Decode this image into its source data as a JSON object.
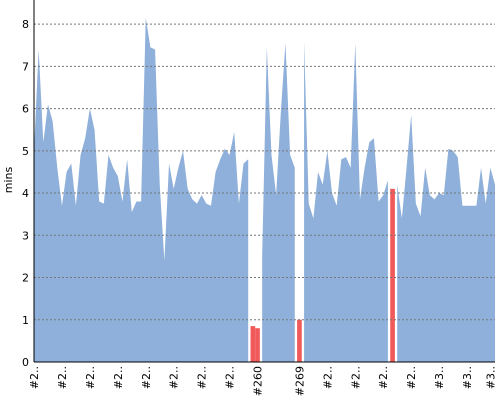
{
  "chart_data": {
    "type": "area",
    "y_label": "mins",
    "ylim": [
      0,
      8.5
    ],
    "yticks": [
      0,
      1,
      2,
      3,
      4,
      5,
      6,
      7,
      8
    ],
    "grid": true,
    "categories": [
      "#2..",
      null,
      null,
      null,
      null,
      null,
      "#2..",
      null,
      null,
      null,
      null,
      null,
      "#2..",
      null,
      null,
      null,
      null,
      null,
      "#2..",
      null,
      null,
      null,
      null,
      null,
      "#2..",
      null,
      null,
      null,
      null,
      null,
      "#2..",
      null,
      null,
      null,
      null,
      null,
      "#2..",
      null,
      null,
      null,
      null,
      null,
      "#2..",
      null,
      null,
      null,
      null,
      null,
      "#260",
      null,
      null,
      null,
      null,
      null,
      null,
      null,
      null,
      "#269",
      null,
      null,
      null,
      null,
      null,
      "#2..",
      null,
      null,
      null,
      null,
      null,
      "#2..",
      null,
      null,
      null,
      null,
      null,
      "#2..",
      null,
      null,
      null,
      null,
      null,
      "#2..",
      null,
      null,
      null,
      null,
      null,
      "#3..",
      null,
      null,
      null,
      null,
      null,
      "#3..",
      null,
      null,
      null,
      null,
      "#3..",
      null
    ],
    "series": [
      {
        "color": "#8eb0da",
        "values": [
          5.0,
          7.4,
          5.2,
          6.1,
          5.7,
          4.6,
          3.7,
          4.5,
          4.7,
          3.7,
          4.9,
          5.3,
          6.0,
          5.5,
          3.8,
          3.75,
          4.9,
          4.6,
          4.4,
          3.8,
          4.8,
          3.55,
          3.8,
          3.8,
          8.15,
          7.45,
          7.4,
          4.2,
          2.4,
          4.7,
          4.1,
          4.6,
          5.0,
          4.1,
          3.85,
          3.75,
          3.95,
          3.75,
          3.7,
          4.5,
          4.8,
          5.05,
          4.9,
          5.45,
          3.75,
          4.7,
          4.8,
          null,
          null,
          2.5,
          7.45,
          4.9,
          3.95,
          5.9,
          7.55,
          4.9,
          4.6,
          null,
          7.6,
          3.75,
          3.4,
          4.5,
          4.2,
          5.0,
          4.0,
          3.7,
          4.8,
          4.85,
          4.6,
          7.55,
          3.85,
          4.6,
          5.2,
          5.3,
          3.8,
          3.95,
          4.3,
          null,
          4.2,
          3.4,
          4.6,
          5.85,
          3.75,
          3.45,
          4.6,
          3.95,
          3.85,
          4.0,
          3.95,
          5.05,
          5.0,
          4.85,
          3.7,
          3.7,
          3.7,
          3.7,
          4.6,
          3.75,
          4.6,
          4.2
        ]
      },
      {
        "color": "#f05a5a",
        "values": [
          null,
          null,
          null,
          null,
          null,
          null,
          null,
          null,
          null,
          null,
          null,
          null,
          null,
          null,
          null,
          null,
          null,
          null,
          null,
          null,
          null,
          null,
          null,
          null,
          null,
          null,
          null,
          null,
          null,
          null,
          null,
          null,
          null,
          null,
          null,
          null,
          null,
          null,
          null,
          null,
          null,
          null,
          null,
          null,
          null,
          null,
          null,
          0.85,
          0.8,
          null,
          null,
          null,
          null,
          null,
          null,
          null,
          null,
          1.0,
          null,
          null,
          null,
          null,
          null,
          null,
          null,
          null,
          null,
          null,
          null,
          null,
          null,
          null,
          null,
          null,
          null,
          null,
          null,
          4.1,
          null,
          null,
          null,
          null,
          null,
          null,
          null,
          null,
          null,
          null,
          null,
          null,
          null,
          null,
          null,
          null,
          null,
          null,
          null,
          null,
          null,
          null
        ]
      }
    ]
  }
}
